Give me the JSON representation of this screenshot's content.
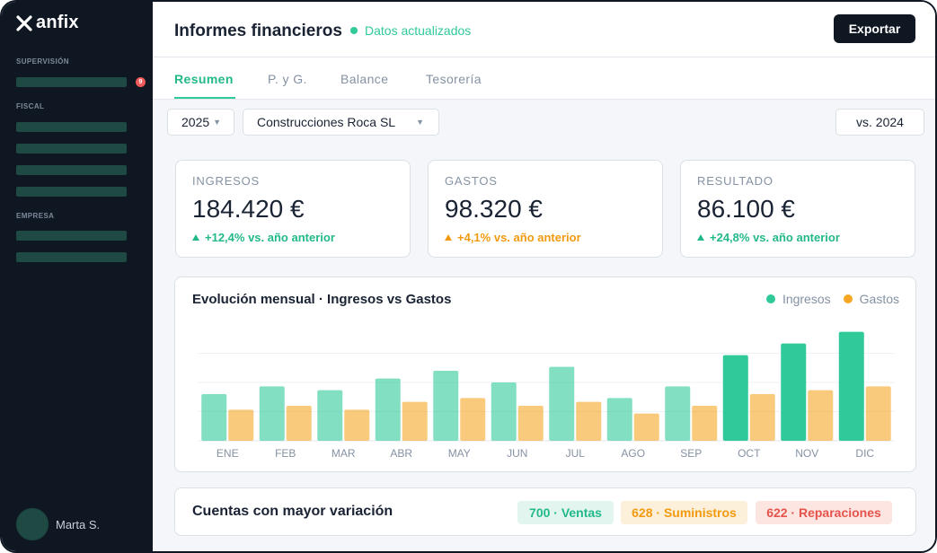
{
  "app": {
    "logo_text": "anfix",
    "logo_icon": "anfix-x-icon"
  },
  "sidebar": {
    "sections": [
      {
        "label": "SUPERVISIÓN",
        "item_count": 1,
        "badge": "9"
      },
      {
        "label": "FISCAL",
        "item_count": 4
      },
      {
        "label": "EMPRESA",
        "item_count": 2
      }
    ],
    "user": {
      "name": "Marta S."
    }
  },
  "header": {
    "title": "Informes financieros",
    "status": "Datos actualizados",
    "export_label": "Exportar"
  },
  "tabs": [
    {
      "label": "Resumen",
      "active": true
    },
    {
      "label": "P. y G.",
      "active": false
    },
    {
      "label": "Balance",
      "active": false
    },
    {
      "label": "Tesorería",
      "active": false
    }
  ],
  "filters": {
    "year": "2025",
    "company": "Construcciones Roca SL",
    "compare": "vs. 2024"
  },
  "kpis": [
    {
      "label": "INGRESOS",
      "value": "184.420 €",
      "delta": "+12,4% vs. año anterior",
      "color": "#23b88a"
    },
    {
      "label": "GASTOS",
      "value": "98.320 €",
      "delta": "+4,1% vs. año anterior",
      "color": "#f29a0f"
    },
    {
      "label": "RESULTADO",
      "value": "86.100 €",
      "delta": "+24,8% vs. año anterior",
      "color": "#23b88a"
    }
  ],
  "chart_data": {
    "type": "bar",
    "title": "Evolución mensual · Ingresos vs Gastos",
    "categories": [
      "ENE",
      "FEB",
      "MAR",
      "ABR",
      "MAY",
      "JUN",
      "JUL",
      "AGO",
      "SEP",
      "OCT",
      "NOV",
      "DIC"
    ],
    "series": [
      {
        "name": "Ingresos",
        "values": [
          12,
          14,
          13,
          16,
          18,
          15,
          19,
          11,
          14,
          22,
          25,
          28
        ],
        "color": "#2fc99a"
      },
      {
        "name": "Gastos",
        "values": [
          8,
          9,
          8,
          10,
          11,
          9,
          10,
          7,
          9,
          12,
          13,
          14
        ],
        "color": "#f5a623"
      }
    ],
    "ylim": [
      0,
      30
    ],
    "grid": true,
    "legend": "top-right"
  },
  "accounts": {
    "title": "Cuentas con mayor variación",
    "items": [
      {
        "label": "700 · Ventas",
        "bg": "#e2f6ef",
        "fg": "#23b88a"
      },
      {
        "label": "628 · Suministros",
        "bg": "#fdf0da",
        "fg": "#f29a0f"
      },
      {
        "label": "622 · Reparaciones",
        "bg": "#fde5e2",
        "fg": "#e5534b"
      }
    ]
  }
}
